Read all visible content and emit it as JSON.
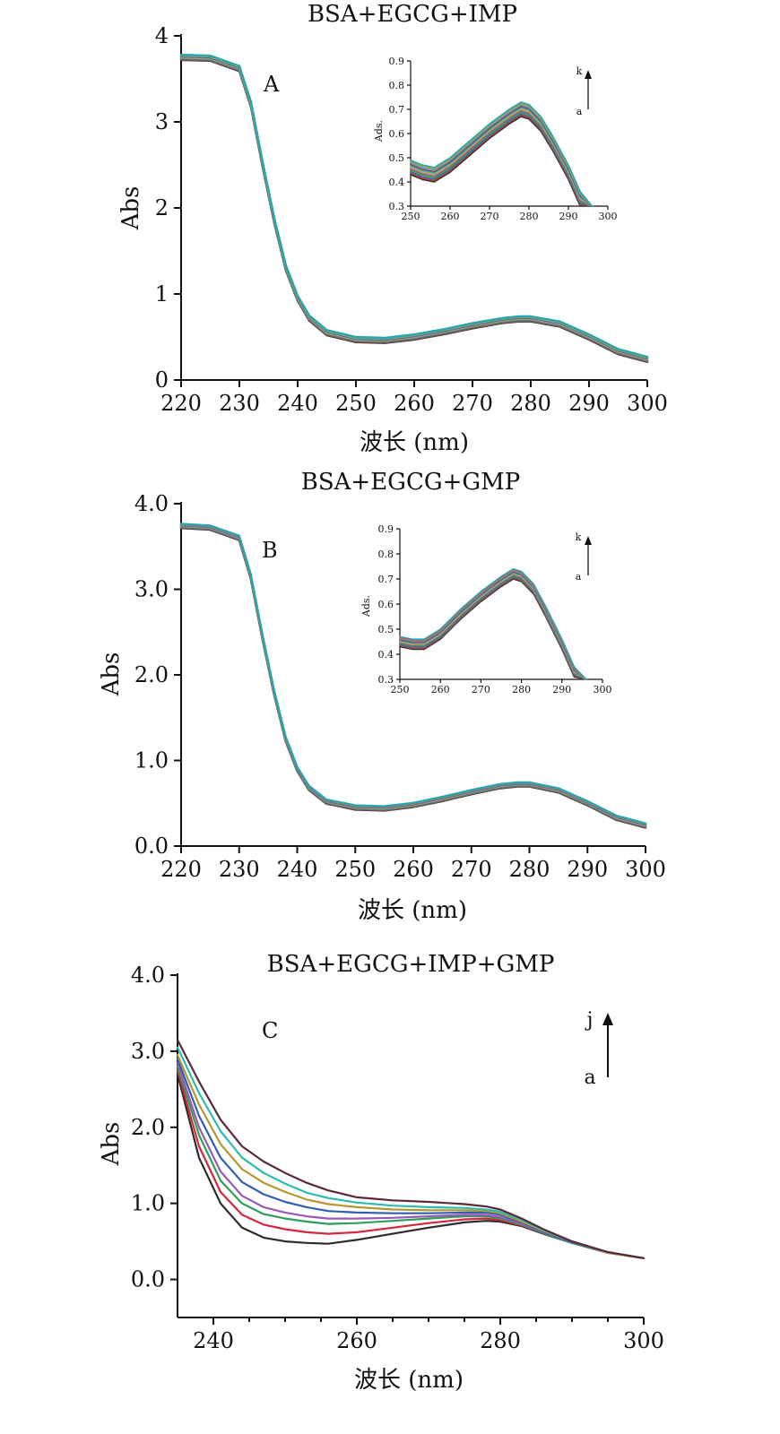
{
  "chart_data": [
    {
      "type": "line",
      "title": "BSA+EGCG+IMP",
      "panel_label": "A",
      "xlabel": "波长 (nm)",
      "ylabel": "Abs",
      "xlim": [
        220,
        300
      ],
      "ylim": [
        0,
        4
      ],
      "x_ticks": [
        "220",
        "230",
        "240",
        "250",
        "260",
        "270",
        "280",
        "290",
        "300"
      ],
      "y_ticks": [
        "0",
        "1",
        "2",
        "3",
        "4"
      ],
      "series_count": 11,
      "colors": [
        "#2f2f2f",
        "#c0392b",
        "#2d6fb0",
        "#3c9a4a",
        "#8e5aa8",
        "#d9a12a",
        "#2fb3c7",
        "#7a4a4a",
        "#6b8fd6",
        "#9aa63a",
        "#26a6b0"
      ],
      "x": [
        220,
        225,
        230,
        232,
        234,
        236,
        238,
        240,
        242,
        245,
        250,
        255,
        260,
        265,
        270,
        275,
        278,
        280,
        285,
        290,
        295,
        300
      ],
      "base": [
        3.75,
        3.74,
        3.62,
        3.2,
        2.5,
        1.85,
        1.3,
        0.95,
        0.72,
        0.55,
        0.47,
        0.46,
        0.5,
        0.56,
        0.63,
        0.69,
        0.71,
        0.71,
        0.65,
        0.5,
        0.33,
        0.24
      ],
      "inset": {
        "xlim": [
          250,
          300
        ],
        "ylim": [
          0.3,
          0.9
        ],
        "x_ticks": [
          "250",
          "260",
          "270",
          "280",
          "290",
          "300"
        ],
        "y_ticks": [
          "0.3",
          "0.4",
          "0.5",
          "0.6",
          "0.7",
          "0.8",
          "0.9"
        ],
        "ylabel": "Ads.",
        "arrow_top": "k",
        "arrow_bottom": "a",
        "x": [
          250,
          253,
          256,
          260,
          265,
          270,
          275,
          278,
          280,
          283,
          286,
          290,
          293,
          296
        ],
        "base": [
          0.46,
          0.44,
          0.43,
          0.47,
          0.54,
          0.61,
          0.67,
          0.7,
          0.69,
          0.64,
          0.56,
          0.44,
          0.33,
          0.25
        ]
      }
    },
    {
      "type": "line",
      "title": "BSA+EGCG+GMP",
      "panel_label": "B",
      "xlabel": "波长 (nm)",
      "ylabel": "Abs",
      "xlim": [
        220,
        300
      ],
      "ylim": [
        0,
        4
      ],
      "x_ticks": [
        "220",
        "230",
        "240",
        "250",
        "260",
        "270",
        "280",
        "290",
        "300"
      ],
      "y_ticks": [
        "0.0",
        "1.0",
        "2.0",
        "3.0",
        "4.0"
      ],
      "series_count": 11,
      "colors": [
        "#2f2f2f",
        "#c0392b",
        "#2d6fb0",
        "#3c9a4a",
        "#8e5aa8",
        "#d9a12a",
        "#2fb3c7",
        "#7a4a4a",
        "#6b8fd6",
        "#e05a2a",
        "#26a6b0"
      ],
      "x": [
        220,
        225,
        230,
        232,
        234,
        236,
        238,
        240,
        242,
        245,
        250,
        255,
        260,
        265,
        270,
        275,
        278,
        280,
        285,
        290,
        295,
        300
      ],
      "base": [
        3.74,
        3.72,
        3.6,
        3.15,
        2.45,
        1.8,
        1.25,
        0.9,
        0.68,
        0.52,
        0.45,
        0.44,
        0.48,
        0.55,
        0.63,
        0.7,
        0.72,
        0.72,
        0.65,
        0.5,
        0.33,
        0.24
      ],
      "inset": {
        "xlim": [
          250,
          300
        ],
        "ylim": [
          0.3,
          0.9
        ],
        "x_ticks": [
          "250",
          "260",
          "270",
          "280",
          "290",
          "300"
        ],
        "y_ticks": [
          "0.3",
          "0.4",
          "0.5",
          "0.6",
          "0.7",
          "0.8",
          "0.9"
        ],
        "ylabel": "Ads.",
        "arrow_top": "k",
        "arrow_bottom": "a",
        "x": [
          250,
          253,
          256,
          260,
          265,
          270,
          275,
          278,
          280,
          283,
          286,
          290,
          293,
          296
        ],
        "base": [
          0.45,
          0.44,
          0.44,
          0.48,
          0.56,
          0.63,
          0.69,
          0.72,
          0.71,
          0.66,
          0.57,
          0.44,
          0.33,
          0.25
        ]
      }
    },
    {
      "type": "line",
      "title": "BSA+EGCG+IMP+GMP",
      "panel_label": "C",
      "xlabel": "波长 (nm)",
      "ylabel": "Abs",
      "xlim": [
        235,
        300
      ],
      "ylim": [
        -0.5,
        4.0
      ],
      "x_ticks": [
        "240",
        "260",
        "280",
        "300"
      ],
      "x_tick_values": [
        240,
        260,
        280,
        300
      ],
      "y_ticks": [
        "0.0",
        "1.0",
        "2.0",
        "3.0",
        "4.0"
      ],
      "arrow_top": "j",
      "arrow_bottom": "a",
      "x": [
        235,
        238,
        241,
        244,
        247,
        250,
        253,
        256,
        260,
        265,
        270,
        275,
        278,
        280,
        283,
        286,
        290,
        295,
        300
      ],
      "series": [
        {
          "color": "#2b2b2b",
          "values": [
            2.7,
            1.6,
            1.0,
            0.68,
            0.55,
            0.5,
            0.48,
            0.47,
            0.52,
            0.6,
            0.68,
            0.75,
            0.77,
            0.76,
            0.7,
            0.6,
            0.48,
            0.35,
            0.28
          ]
        },
        {
          "color": "#d7263d",
          "values": [
            2.75,
            1.75,
            1.15,
            0.85,
            0.72,
            0.66,
            0.62,
            0.6,
            0.62,
            0.68,
            0.74,
            0.79,
            0.8,
            0.78,
            0.71,
            0.61,
            0.48,
            0.35,
            0.28
          ]
        },
        {
          "color": "#2e9e5b",
          "values": [
            2.8,
            1.9,
            1.3,
            1.0,
            0.86,
            0.8,
            0.76,
            0.73,
            0.74,
            0.77,
            0.8,
            0.83,
            0.83,
            0.8,
            0.72,
            0.61,
            0.48,
            0.35,
            0.28
          ]
        },
        {
          "color": "#9b59b6",
          "values": [
            2.85,
            2.0,
            1.42,
            1.1,
            0.95,
            0.88,
            0.83,
            0.8,
            0.8,
            0.81,
            0.83,
            0.85,
            0.85,
            0.82,
            0.73,
            0.62,
            0.49,
            0.35,
            0.28
          ]
        },
        {
          "color": "#2f5fb3",
          "values": [
            2.9,
            2.15,
            1.6,
            1.28,
            1.12,
            1.02,
            0.95,
            0.9,
            0.88,
            0.87,
            0.87,
            0.88,
            0.88,
            0.85,
            0.75,
            0.63,
            0.49,
            0.35,
            0.28
          ]
        },
        {
          "color": "#b8962e",
          "values": [
            2.95,
            2.3,
            1.78,
            1.45,
            1.27,
            1.15,
            1.05,
            0.99,
            0.95,
            0.92,
            0.91,
            0.91,
            0.9,
            0.87,
            0.76,
            0.64,
            0.5,
            0.35,
            0.28
          ]
        },
        {
          "color": "#2cbcb0",
          "values": [
            3.05,
            2.45,
            1.95,
            1.6,
            1.4,
            1.26,
            1.14,
            1.07,
            1.01,
            0.97,
            0.95,
            0.94,
            0.92,
            0.89,
            0.78,
            0.65,
            0.5,
            0.36,
            0.28
          ]
        },
        {
          "color": "#5a2a3a",
          "values": [
            3.15,
            2.6,
            2.1,
            1.75,
            1.55,
            1.4,
            1.27,
            1.17,
            1.08,
            1.04,
            1.02,
            0.99,
            0.96,
            0.92,
            0.8,
            0.66,
            0.5,
            0.36,
            0.28
          ]
        }
      ]
    }
  ]
}
